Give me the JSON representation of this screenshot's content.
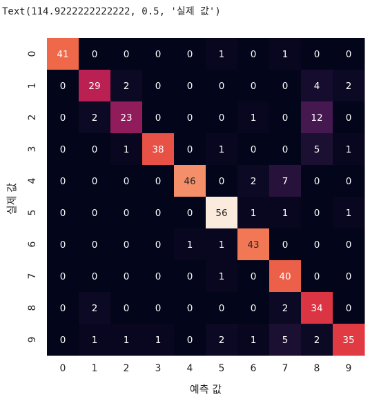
{
  "output_text": "Text(114.9222222222222, 0.5, '실제 값')",
  "chart_data": {
    "type": "heatmap",
    "title": "",
    "xlabel": "예측 값",
    "ylabel": "실제 값",
    "x_categories": [
      "0",
      "1",
      "2",
      "3",
      "4",
      "5",
      "6",
      "7",
      "8",
      "9"
    ],
    "y_categories": [
      "0",
      "1",
      "2",
      "3",
      "4",
      "5",
      "6",
      "7",
      "8",
      "9"
    ],
    "values": [
      [
        41,
        0,
        0,
        0,
        0,
        1,
        0,
        1,
        0,
        0
      ],
      [
        0,
        29,
        2,
        0,
        0,
        0,
        0,
        0,
        4,
        2
      ],
      [
        0,
        2,
        23,
        0,
        0,
        0,
        1,
        0,
        12,
        0
      ],
      [
        0,
        0,
        1,
        38,
        0,
        1,
        0,
        0,
        5,
        1
      ],
      [
        0,
        0,
        0,
        0,
        46,
        0,
        2,
        7,
        0,
        0
      ],
      [
        0,
        0,
        0,
        0,
        0,
        56,
        1,
        1,
        0,
        1
      ],
      [
        0,
        0,
        0,
        0,
        1,
        1,
        43,
        0,
        0,
        0
      ],
      [
        0,
        0,
        0,
        0,
        0,
        1,
        0,
        40,
        0,
        0
      ],
      [
        0,
        2,
        0,
        0,
        0,
        0,
        0,
        2,
        34,
        0
      ],
      [
        0,
        1,
        1,
        1,
        0,
        2,
        1,
        5,
        2,
        35
      ]
    ],
    "vmin": 0,
    "vmax": 56,
    "colormap": "rocket",
    "colorbar": false,
    "annotations": true
  }
}
